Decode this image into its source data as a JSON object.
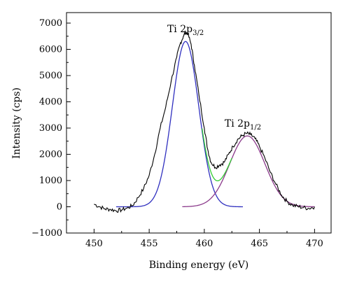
{
  "chart_data": {
    "type": "line",
    "title": "",
    "xlabel": "Binding energy (eV)",
    "ylabel": "Intensity (cps)",
    "xlim": [
      447.5,
      471.5
    ],
    "ylim": [
      -1000,
      7400
    ],
    "x_ticks": [
      450,
      455,
      460,
      465,
      470
    ],
    "y_ticks": [
      -1000,
      0,
      1000,
      2000,
      3000,
      4000,
      5000,
      6000,
      7000
    ],
    "x_tick_labels": [
      "450",
      "455",
      "460",
      "465",
      "470"
    ],
    "y_tick_labels": [
      "−1000",
      "0",
      "1000",
      "2000",
      "3000",
      "4000",
      "5000",
      "6000",
      "7000"
    ],
    "grid": false,
    "legend": "none",
    "annotations": [
      {
        "text": "Ti 2p",
        "sub": "3/2",
        "x": 458.3,
        "y": 6650
      },
      {
        "text": "Ti 2p",
        "sub": "1/2",
        "x": 463.5,
        "y": 3050
      }
    ],
    "series": [
      {
        "kind": "measured",
        "color": "#000000",
        "x": [
          450.0,
          450.5,
          451.0,
          451.5,
          452.0,
          452.5,
          453.0,
          453.5,
          454.0,
          454.5,
          455.0,
          455.5,
          456.0,
          456.5,
          457.0,
          457.5,
          457.8,
          458.1,
          458.3,
          458.5,
          458.8,
          459.1,
          459.5,
          460.0,
          460.3,
          460.6,
          461.0,
          461.4,
          461.8,
          462.2,
          462.6,
          463.0,
          463.4,
          463.8,
          464.2,
          464.6,
          465.0,
          465.5,
          466.0,
          466.5,
          467.0,
          467.5,
          468.0,
          468.5,
          469.0,
          469.5,
          470.0
        ],
        "y": [
          100,
          0,
          -80,
          -100,
          -150,
          -120,
          -50,
          50,
          350,
          700,
          1200,
          2000,
          3000,
          3800,
          4800,
          5700,
          6200,
          6500,
          6650,
          6600,
          6200,
          5400,
          4300,
          3000,
          2200,
          1700,
          1500,
          1600,
          1700,
          2000,
          2300,
          2550,
          2700,
          2800,
          2750,
          2600,
          2300,
          1850,
          1300,
          850,
          450,
          200,
          60,
          10,
          -30,
          -60,
          0
        ]
      },
      {
        "kind": "peak-fit",
        "color": "#2f2fbf",
        "gaussian": {
          "center": 458.3,
          "amplitude": 6300,
          "sigma": 1.2
        },
        "range": [
          452,
          463.5
        ]
      },
      {
        "kind": "peak-fit",
        "color": "#8b3a8b",
        "gaussian": {
          "center": 463.9,
          "amplitude": 2700,
          "sigma": 1.6
        },
        "range": [
          458,
          470
        ]
      },
      {
        "kind": "envelope",
        "color": "#33cc33",
        "range": [
          459.8,
          462.5
        ]
      }
    ]
  }
}
